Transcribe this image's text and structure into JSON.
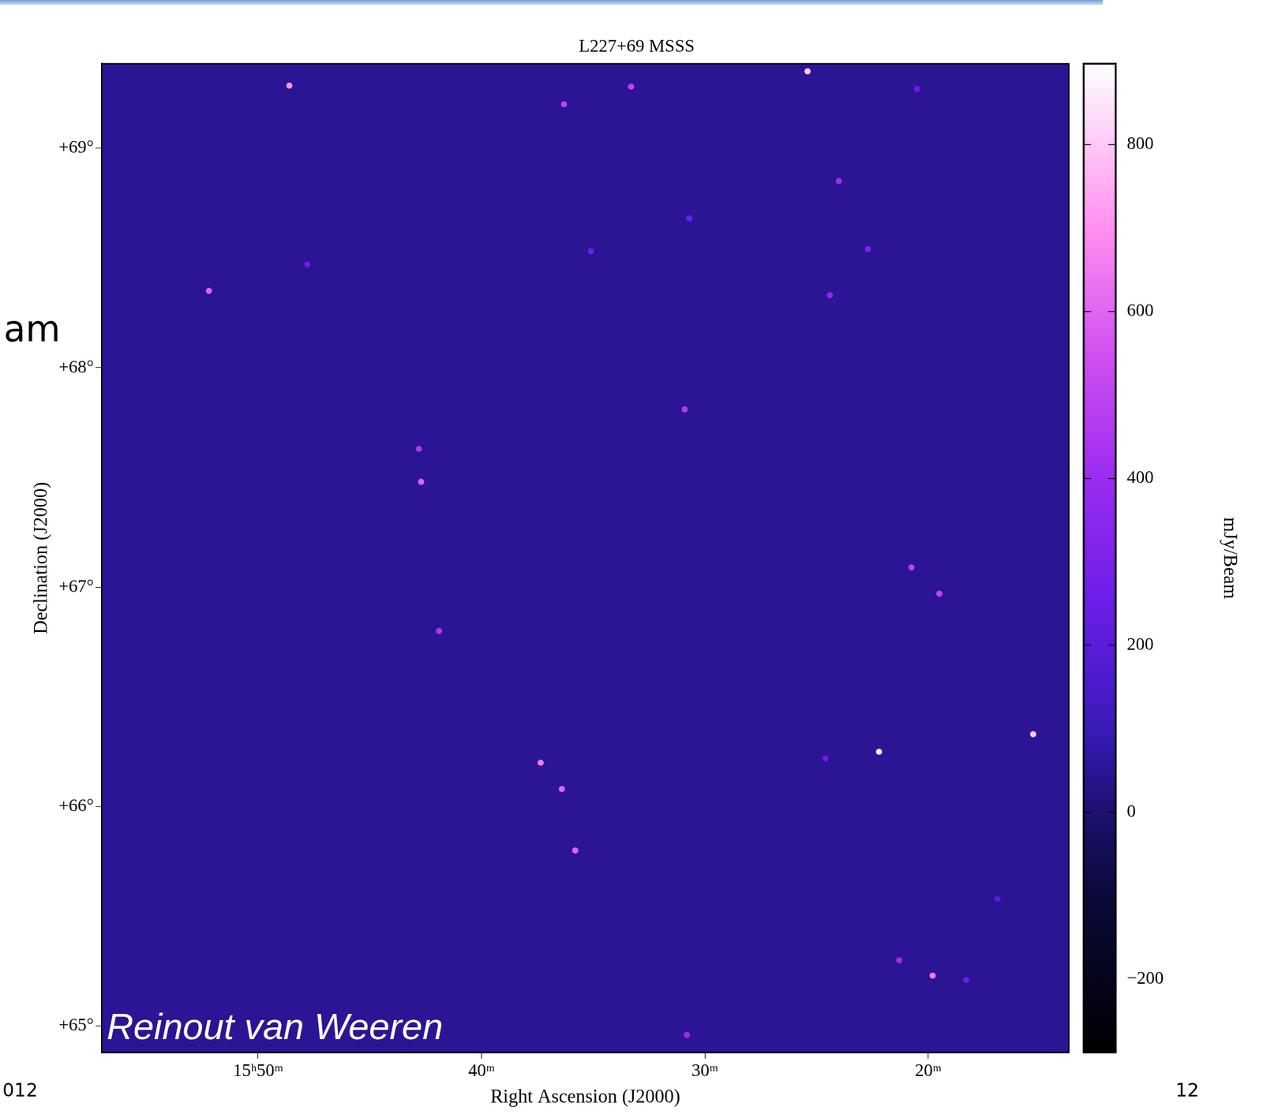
{
  "chart_data": {
    "type": "scatter",
    "title": "L227+69 MSSS",
    "x_label": "Right Ascension (J2000)",
    "y_label": "Declination (J2000)",
    "xlim": [
      57.0,
      13.7
    ],
    "xticks": [
      {
        "value": 50,
        "label": "15ʰ50ᵐ"
      },
      {
        "value": 40,
        "label": "40ᵐ"
      },
      {
        "value": 30,
        "label": "30ᵐ"
      },
      {
        "value": 20,
        "label": "20ᵐ"
      }
    ],
    "ylim": [
      64.88,
      69.385
    ],
    "yticks": [
      {
        "value": 65,
        "label": "+65°"
      },
      {
        "value": 66,
        "label": "+66°"
      },
      {
        "value": 67,
        "label": "+67°"
      },
      {
        "value": 68,
        "label": "+68°"
      },
      {
        "value": 69,
        "label": "+69°"
      }
    ],
    "grid": false,
    "x": [
      48.6,
      36.3,
      33.3,
      25.4,
      20.5,
      24.0,
      30.7,
      52.2,
      47.8,
      35.1,
      22.7,
      24.4,
      30.9,
      42.8,
      42.7,
      20.75,
      19.5,
      41.9,
      15.3,
      22.2,
      37.35,
      36.4,
      35.8,
      19.8,
      21.3,
      18.3,
      30.8,
      16.9,
      24.6
    ],
    "y": [
      69.285,
      69.2,
      69.28,
      69.35,
      69.27,
      68.85,
      68.68,
      68.35,
      68.47,
      68.53,
      68.54,
      68.33,
      67.81,
      67.63,
      67.48,
      67.09,
      66.97,
      66.8,
      66.33,
      66.25,
      66.2,
      66.08,
      65.8,
      65.23,
      65.3,
      65.21,
      64.96,
      65.58,
      66.22
    ],
    "flux": [
      700,
      500,
      500,
      800,
      250,
      400,
      250,
      600,
      250,
      250,
      300,
      350,
      450,
      450,
      600,
      500,
      500,
      450,
      800,
      850,
      650,
      600,
      600,
      650,
      400,
      250,
      400,
      200,
      250
    ],
    "background_level": 50,
    "colorbar": {
      "label": "mJy/Beam",
      "range": [
        -288,
        897
      ],
      "ticks": [
        {
          "value": -200,
          "label": "−200"
        },
        0,
        200,
        400,
        600,
        800
      ]
    },
    "annotations": [
      "Reinout van Weeren"
    ],
    "page_text": {
      "left": "am",
      "bottom_left": "012",
      "bottom_right": "12"
    }
  }
}
